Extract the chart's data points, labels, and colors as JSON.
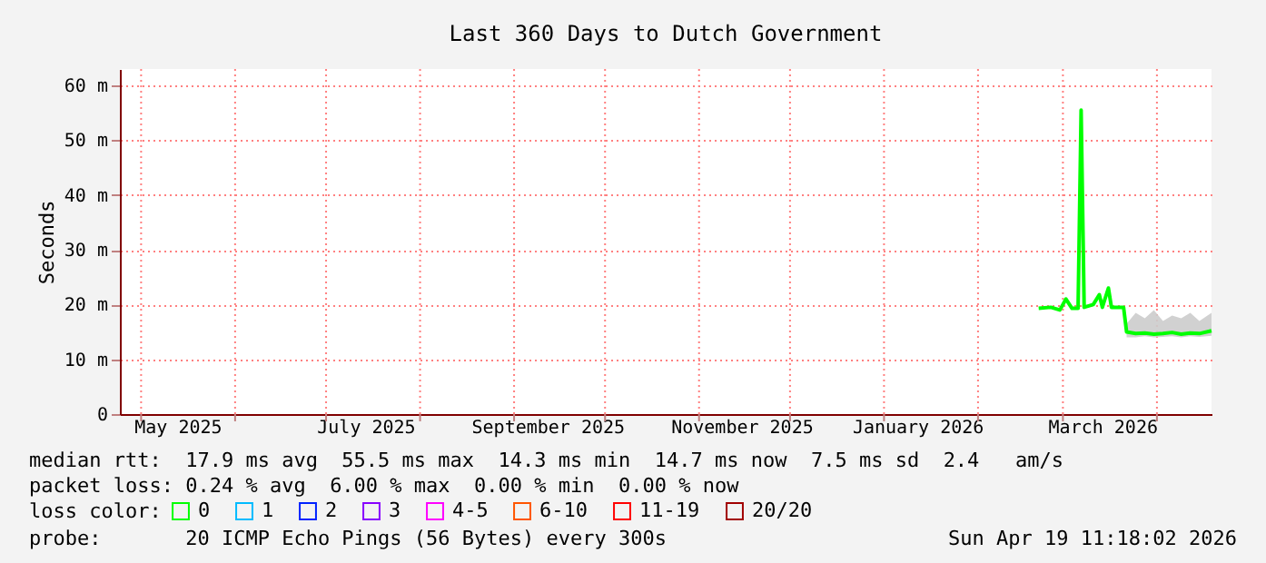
{
  "chart_data": {
    "type": "line",
    "title": "Last 360 Days to Dutch Government",
    "ylabel": "Seconds",
    "x": [
      "2026-02-21",
      "2026-02-25",
      "2026-02-28",
      "2026-03-02",
      "2026-03-04",
      "2026-03-06",
      "2026-03-07",
      "2026-03-08",
      "2026-03-11",
      "2026-03-13",
      "2026-03-14",
      "2026-03-16",
      "2026-03-17",
      "2026-03-21",
      "2026-03-22",
      "2026-03-25",
      "2026-03-28",
      "2026-03-31",
      "2026-04-03",
      "2026-04-06",
      "2026-04-09",
      "2026-04-12",
      "2026-04-15",
      "2026-04-19"
    ],
    "series": [
      {
        "name": "0",
        "color": "#00ff00",
        "values": [
          19.3,
          19.5,
          19.0,
          21.0,
          19.3,
          19.3,
          55.5,
          19.5,
          20.0,
          21.8,
          19.5,
          23.0,
          19.5,
          19.5,
          15.0,
          14.7,
          14.8,
          14.6,
          14.7,
          14.9,
          14.6,
          14.8,
          14.7,
          15.2
        ],
        "lower": [
          null,
          null,
          null,
          null,
          null,
          null,
          null,
          null,
          null,
          null,
          null,
          null,
          null,
          null,
          14.0,
          14.0,
          14.2,
          14.0,
          14.1,
          14.2,
          14.0,
          14.2,
          14.1,
          14.3
        ],
        "upper": [
          null,
          null,
          null,
          null,
          null,
          null,
          null,
          null,
          null,
          null,
          null,
          null,
          null,
          null,
          16.5,
          18.5,
          17.5,
          19.0,
          17.0,
          18.0,
          17.5,
          18.5,
          17.0,
          18.5
        ]
      },
      {
        "name": "1",
        "color": "#00bbff",
        "values": [
          null,
          null,
          null,
          null,
          null,
          null,
          null,
          null,
          null,
          null,
          null,
          null,
          null,
          null,
          null,
          null,
          null,
          null,
          null,
          null,
          null,
          null,
          null,
          null
        ]
      },
      {
        "name": "2",
        "color": "#0022ff",
        "values": [
          null,
          null,
          null,
          null,
          null,
          null,
          null,
          null,
          null,
          null,
          null,
          null,
          null,
          null,
          null,
          null,
          null,
          null,
          null,
          null,
          null,
          null,
          null,
          null
        ]
      },
      {
        "name": "3",
        "color": "#8800ff",
        "values": [
          null,
          null,
          null,
          null,
          null,
          null,
          null,
          null,
          null,
          null,
          null,
          null,
          null,
          null,
          null,
          null,
          null,
          null,
          null,
          null,
          null,
          null,
          null,
          null
        ]
      },
      {
        "name": "4-5",
        "color": "#ff00ff",
        "values": [
          null,
          null,
          null,
          null,
          null,
          null,
          null,
          null,
          null,
          null,
          null,
          null,
          null,
          null,
          null,
          null,
          null,
          null,
          null,
          null,
          null,
          null,
          null,
          null
        ]
      },
      {
        "name": "6-10",
        "color": "#ff5500",
        "values": [
          null,
          null,
          null,
          null,
          null,
          null,
          null,
          null,
          null,
          null,
          null,
          null,
          null,
          null,
          null,
          null,
          null,
          null,
          null,
          null,
          null,
          null,
          null,
          null
        ]
      },
      {
        "name": "11-19",
        "color": "#ff0000",
        "values": [
          null,
          null,
          null,
          null,
          null,
          null,
          null,
          null,
          null,
          null,
          null,
          null,
          null,
          null,
          null,
          null,
          null,
          null,
          null,
          null,
          null,
          null,
          null,
          null
        ]
      },
      {
        "name": "20/20",
        "color": "#a10000",
        "values": [
          null,
          null,
          null,
          null,
          null,
          null,
          null,
          null,
          null,
          null,
          null,
          null,
          null,
          null,
          null,
          null,
          null,
          null,
          null,
          null,
          null,
          null,
          null,
          null
        ]
      }
    ],
    "legend_title": "loss color:",
    "legend": "bottom left",
    "xlim": [
      "2025-04-24",
      "2026-04-19"
    ],
    "xticks": [
      {
        "value": "2025-05-01",
        "label": null
      },
      {
        "value": "2025-05-13",
        "label": "May 2025"
      },
      {
        "value": "2025-06-01",
        "label": null
      },
      {
        "value": "2025-07-01",
        "label": null
      },
      {
        "value": "2025-07-14",
        "label": "July 2025"
      },
      {
        "value": "2025-08-01",
        "label": null
      },
      {
        "value": "2025-09-01",
        "label": null
      },
      {
        "value": "2025-09-12",
        "label": "September 2025"
      },
      {
        "value": "2025-10-01",
        "label": null
      },
      {
        "value": "2025-11-01",
        "label": null
      },
      {
        "value": "2025-11-15",
        "label": "November 2025"
      },
      {
        "value": "2025-12-01",
        "label": null
      },
      {
        "value": "2026-01-01",
        "label": null
      },
      {
        "value": "2026-01-12",
        "label": "January 2026"
      },
      {
        "value": "2026-02-01",
        "label": null
      },
      {
        "value": "2026-03-01",
        "label": null
      },
      {
        "value": "2026-03-14",
        "label": "March 2026"
      },
      {
        "value": "2026-04-01",
        "label": null
      }
    ],
    "ylim": [
      0,
      63
    ],
    "yticks": [
      0,
      {
        "value": 10,
        "label": "10 m"
      },
      {
        "value": 20,
        "label": "20 m"
      },
      {
        "value": 30,
        "label": "30 m"
      },
      {
        "value": 40,
        "label": "40 m"
      },
      {
        "value": 50,
        "label": "50 m"
      },
      {
        "value": 60,
        "label": "60 m"
      }
    ],
    "grid": true,
    "marker": "none",
    "line_style": "solid",
    "annotations": [
      "median rtt:  17.9 ms avg  55.5 ms max  14.3 ms min  14.7 ms now  7.5 ms sd  2.4   am/s",
      "packet loss: 0.24 % avg  6.00 % max  0.00 % min  0.00 % now",
      "probe:       20 ICMP Echo Pings (56 Bytes) every 300s",
      "Sun Apr 19 11:18:02 2026"
    ]
  }
}
